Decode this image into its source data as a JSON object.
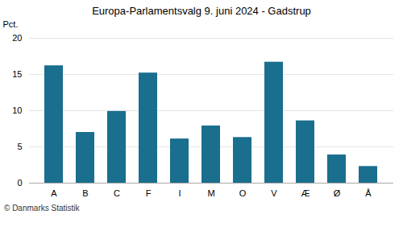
{
  "chart_data": {
    "type": "bar",
    "title": "Europa-Parlamentsvalg 9. juni 2024 - Gadstrup",
    "categories": [
      "A",
      "B",
      "C",
      "F",
      "I",
      "M",
      "O",
      "V",
      "Æ",
      "Ø",
      "Å"
    ],
    "values": [
      16.2,
      7.0,
      9.9,
      15.2,
      6.1,
      7.9,
      6.3,
      16.7,
      8.6,
      3.9,
      2.3
    ],
    "color": "#1a6e8e",
    "ylabel": "Pct.",
    "ylim": [
      0,
      20
    ],
    "yticks": [
      0,
      5,
      10,
      15,
      20
    ],
    "grid": true,
    "caption": "© Danmarks Statistik"
  }
}
